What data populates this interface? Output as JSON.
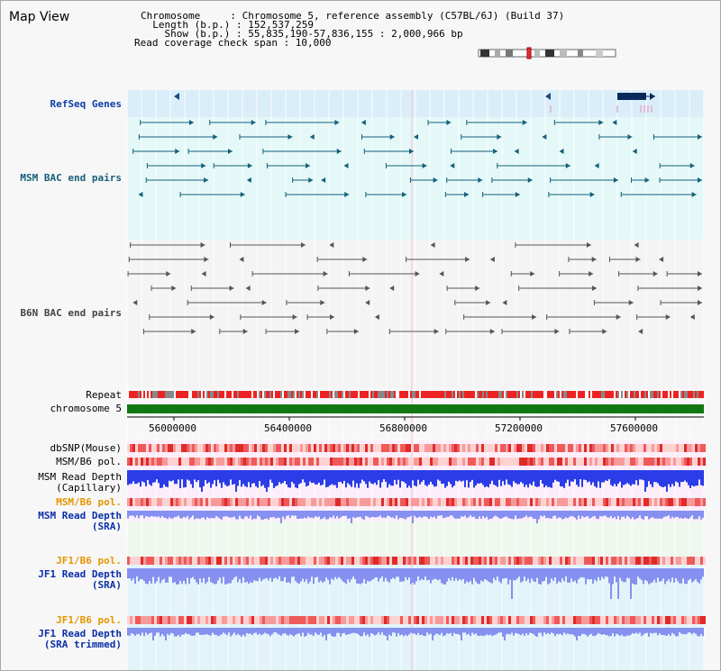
{
  "title": "Map View",
  "info": {
    "chromosome": "Chromosome     : Chromosome 5, reference assembly (C57BL/6J) (Build 37)",
    "length": "  Length (b.p.) : 152,537,259",
    "show": "    Show (b.p.) : 55,835,190-57,836,155 : 2,000,966 bp",
    "coverage": "Read coverage check span : 10,000"
  },
  "tracks": {
    "refseq": "RefSeq Genes",
    "msm_bac": "MSM BAC end pairs",
    "b6n_bac": "B6N BAC end pairs",
    "repeat": "Repeat",
    "chromosome": "chromosome 5",
    "dbsnp": "dbSNP(Mouse)",
    "msm_b6_pol_1": "MSM/B6 pol.",
    "msm_depth_cap": "MSM Read Depth\n(Capillary)",
    "msm_b6_pol_2": "MSM/B6 pol.",
    "msm_depth_sra": "MSM Read Depth\n(SRA)",
    "jf1_b6_pol_1": "JF1/B6 pol.",
    "jf1_depth_sra": "JF1 Read Depth\n(SRA)",
    "jf1_b6_pol_2": "JF1/B6 pol.",
    "jf1_depth_trim": "JF1 Read Depth\n(SRA trimmed)"
  },
  "axis": {
    "ticks": [
      "56000000",
      "56400000",
      "56800000",
      "57200000",
      "57600000"
    ]
  },
  "colors": {
    "refseq_band": "#daeefa",
    "bac_band": "#e4f8f8",
    "gene": "#0a2a5e",
    "msm_bac_line": "#14607a",
    "b6n_bac_line": "#555555",
    "repeat_red": "#ee2b2b",
    "chromosome": "#117711",
    "depth_blue": "#2b3de8",
    "depth_light": "#8590f0"
  }
}
